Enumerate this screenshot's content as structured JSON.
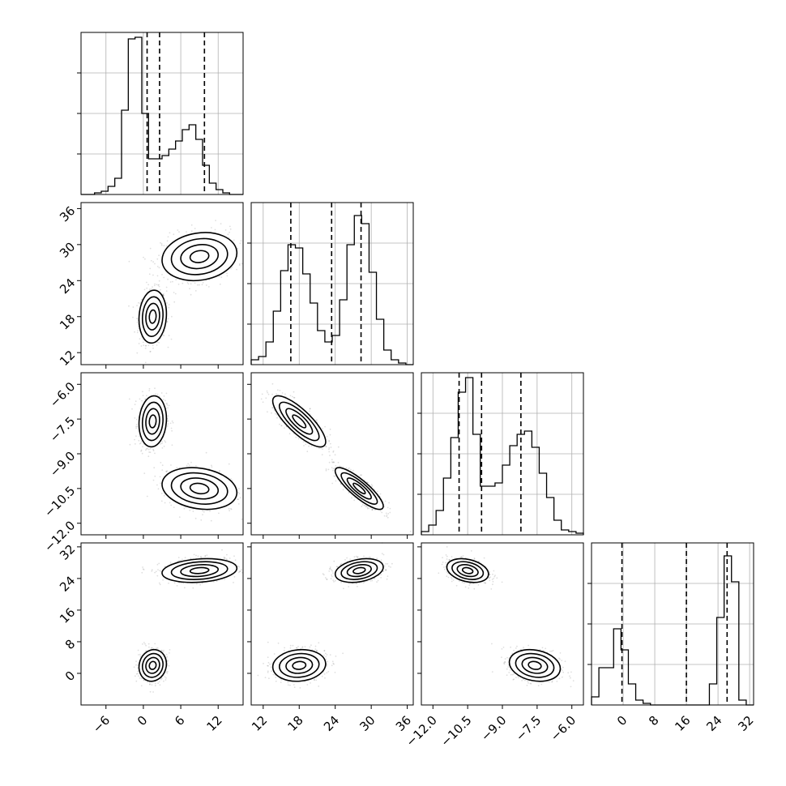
{
  "chart_data": {
    "type": "corner",
    "title": "",
    "parameters": [
      {
        "range": [
          -10,
          16
        ],
        "ticks": [
          -6,
          0,
          6,
          12
        ],
        "quantiles": [
          0.6,
          2.6,
          9.8
        ],
        "hist": [
          0,
          0,
          0.01,
          0.02,
          0.05,
          0.1,
          0.52,
          0.96,
          0.97,
          0.5,
          0.22,
          0.22,
          0.24,
          0.28,
          0.33,
          0.4,
          0.43,
          0.34,
          0.18,
          0.07,
          0.03,
          0.01,
          0,
          0
        ]
      },
      {
        "range": [
          10,
          37
        ],
        "ticks": [
          12,
          18,
          24,
          30,
          36
        ],
        "quantiles": [
          16.6,
          23.4,
          28.3
        ],
        "hist": [
          0.03,
          0.05,
          0.14,
          0.33,
          0.58,
          0.74,
          0.72,
          0.56,
          0.38,
          0.21,
          0.14,
          0.18,
          0.4,
          0.74,
          0.92,
          0.87,
          0.57,
          0.28,
          0.09,
          0.03,
          0.01,
          0
        ]
      },
      {
        "range": [
          -12.5,
          -5.5
        ],
        "ticks": [
          -12.0,
          -10.5,
          -9.0,
          -7.5,
          -6.0
        ],
        "tick_labels": [
          "−12.0",
          "−10.5",
          "−9.0",
          "−7.5",
          "−6.0"
        ],
        "quantiles": [
          -10.87,
          -9.9,
          -8.2
        ],
        "hist": [
          0.02,
          0.06,
          0.15,
          0.35,
          0.6,
          0.88,
          0.97,
          0.62,
          0.3,
          0.3,
          0.32,
          0.43,
          0.55,
          0.62,
          0.64,
          0.54,
          0.38,
          0.23,
          0.09,
          0.03,
          0.02,
          0.01
        ]
      },
      {
        "range": [
          -8,
          33
        ],
        "ticks": [
          0,
          8,
          16,
          24,
          32
        ],
        "quantiles": [
          -0.3,
          16.0,
          26.3
        ],
        "hist": [
          0.05,
          0.23,
          0.23,
          0.47,
          0.34,
          0.13,
          0.03,
          0.01,
          0,
          0,
          0,
          0,
          0,
          0,
          0,
          0,
          0.13,
          0.54,
          0.92,
          0.76,
          0.03,
          0
        ]
      }
    ],
    "modes": [
      {
        "means": [
          1.5,
          18,
          -7.6,
          2
        ],
        "stds": [
          1.1,
          2.2,
          0.55,
          2.0
        ],
        "corr": {
          "0_1": 0.1,
          "0_2": 0.1,
          "0_3": 0.1,
          "1_2": -0.8,
          "1_3": 0.1,
          "2_3": -0.2
        },
        "weight": 0.5
      },
      {
        "means": [
          9,
          28,
          -10.5,
          26
        ],
        "stds": [
          3.0,
          2.0,
          0.45,
          1.5
        ],
        "corr": {
          "0_1": 0.15,
          "0_2": -0.2,
          "0_3": 0.2,
          "1_2": -0.85,
          "1_3": 0.3,
          "2_3": -0.3
        },
        "weight": 0.5
      }
    ]
  }
}
